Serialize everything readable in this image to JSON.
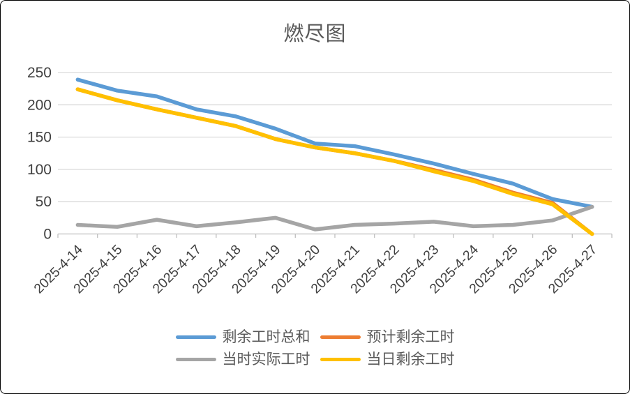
{
  "chart_data": {
    "type": "line",
    "title": "燃尽图",
    "categories": [
      "2025-4-14",
      "2025-4-15",
      "2025-4-16",
      "2025-4-17",
      "2025-4-18",
      "2025-4-19",
      "2025-4-20",
      "2025-4-21",
      "2025-4-22",
      "2025-4-23",
      "2025-4-24",
      "2025-4-25",
      "2025-4-26",
      "2025-4-27"
    ],
    "series": [
      {
        "name": "剩余工时总和",
        "color": "#5B9BD5",
        "values": [
          239,
          222,
          213,
          193,
          182,
          163,
          140,
          136,
          123,
          109,
          93,
          78,
          54,
          42
        ]
      },
      {
        "name": "预计剩余工时",
        "color": "#ED7D31",
        "values": [
          224,
          207,
          193,
          180,
          167,
          147,
          134,
          125,
          113,
          99,
          84,
          64,
          48,
          0
        ]
      },
      {
        "name": "当时实际工时",
        "color": "#A5A5A5",
        "values": [
          14,
          11,
          22,
          12,
          18,
          25,
          7,
          14,
          16,
          19,
          12,
          14,
          21,
          42
        ]
      },
      {
        "name": "当日剩余工时",
        "color": "#FFC000",
        "values": [
          224,
          207,
          193,
          180,
          167,
          147,
          134,
          125,
          113,
          97,
          82,
          62,
          46,
          0
        ]
      }
    ],
    "y_ticks": [
      0,
      50,
      100,
      150,
      200,
      250
    ],
    "ylim": [
      0,
      250
    ],
    "grid": true,
    "legend_position": "bottom",
    "legend_rows": [
      [
        0,
        1
      ],
      [
        2,
        3
      ]
    ],
    "colors": {
      "grid": "#D9D9D9",
      "axis_line": "#BFBFBF",
      "axis_text": "#404040",
      "title_text": "#595959",
      "legend_text": "#595959",
      "frame_border": "#000000"
    }
  }
}
